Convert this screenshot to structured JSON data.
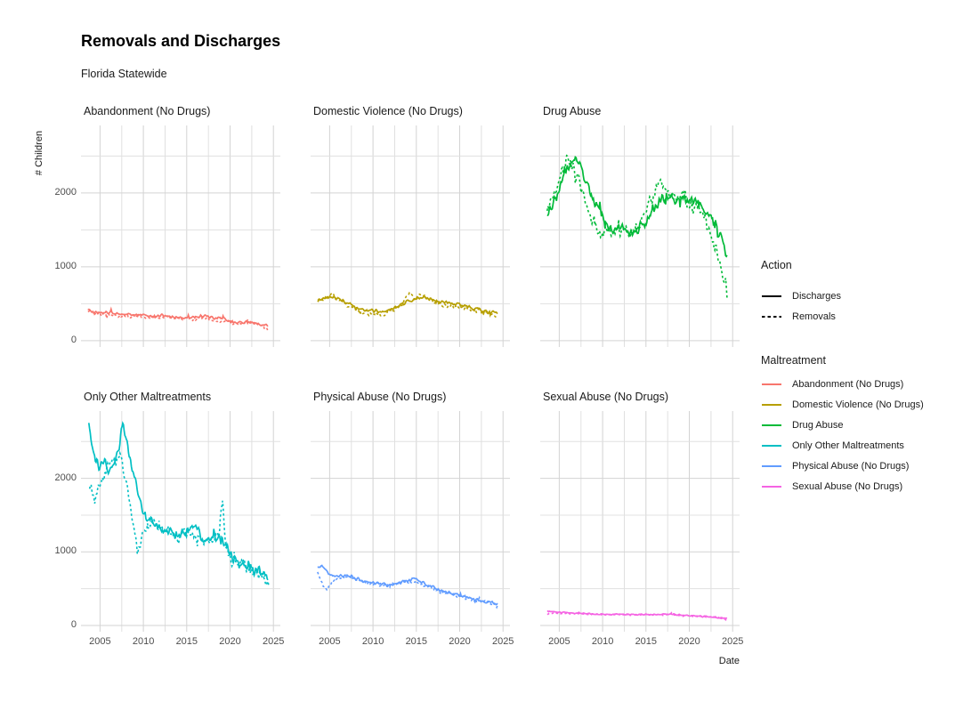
{
  "title": "Removals and Discharges",
  "subtitle": "Florida Statewide",
  "axes": {
    "x_label": "Date",
    "y_label": "# Children",
    "x_ticks": [
      2005,
      2010,
      2015,
      2020,
      2025
    ],
    "y_ticks": [
      0,
      1000,
      2000
    ],
    "x_domain": [
      2002.8,
      2025.8
    ],
    "y_domain": [
      -85,
      2915
    ],
    "x_grid_step": 2.5,
    "y_grid_step": 500,
    "grid_major_color": "#d3d3d3",
    "grid_minor_color": "#e0e0e0",
    "tick_text_color": "#4d4d4d"
  },
  "legend": {
    "position": "right",
    "action_title": "Action",
    "action_items": [
      {
        "label": "Discharges",
        "style": "solid"
      },
      {
        "label": "Removals",
        "style": "dashed"
      }
    ],
    "maltreatment_title": "Maltreatment",
    "maltreatment_items": [
      {
        "label": "Abandonment (No Drugs)",
        "color": "#F8766D"
      },
      {
        "label": "Domestic Violence (No Drugs)",
        "color": "#B79F00"
      },
      {
        "label": "Drug Abuse",
        "color": "#00BA38"
      },
      {
        "label": "Only Other Maltreatments",
        "color": "#00BFC4"
      },
      {
        "label": "Physical Abuse (No Drugs)",
        "color": "#619CFF"
      },
      {
        "label": "Sexual Abuse (No Drugs)",
        "color": "#F564E3"
      }
    ]
  },
  "chart_data": {
    "type": "line",
    "title": "Removals and Discharges",
    "subtitle": "Florida Statewide",
    "xlabel": "Date",
    "ylabel": "# Children",
    "xlim": [
      2002.8,
      2025.8
    ],
    "ylim": [
      -85,
      2915
    ],
    "grid": true,
    "legend_position": "right",
    "facets": [
      {
        "title": "Abandonment (No Drugs)",
        "color": "#F8766D",
        "noise": 13,
        "series": [
          {
            "name": "Discharges",
            "style": "solid",
            "x": [
              2003.6,
              2004.2,
              2005,
              2006,
              2007,
              2008,
              2009,
              2010,
              2011,
              2012,
              2013,
              2014,
              2015,
              2016,
              2017,
              2018,
              2019,
              2020,
              2021,
              2022,
              2023,
              2024,
              2024.4
            ],
            "y": [
              430,
              385,
              375,
              385,
              368,
              355,
              345,
              348,
              330,
              338,
              330,
              318,
              308,
              330,
              342,
              300,
              312,
              252,
              245,
              252,
              235,
              218,
              205
            ]
          },
          {
            "name": "Removals",
            "style": "dashed",
            "x": [
              2003.6,
              2004.5,
              2005.5,
              2006.5,
              2007.5,
              2008.5,
              2009.5,
              2010.5,
              2011.5,
              2012.5,
              2013.5,
              2014.5,
              2015.5,
              2016.5,
              2017.5,
              2018.5,
              2019.5,
              2020.5,
              2021.5,
              2022,
              2022.7,
              2023.5,
              2024.4
            ],
            "y": [
              395,
              360,
              350,
              345,
              335,
              330,
              332,
              318,
              312,
              322,
              310,
              292,
              300,
              305,
              295,
              262,
              275,
              230,
              228,
              265,
              240,
              215,
              148
            ]
          }
        ]
      },
      {
        "title": "Domestic Violence (No Drugs)",
        "color": "#B79F00",
        "noise": 16,
        "series": [
          {
            "name": "Discharges",
            "style": "solid",
            "x": [
              2003.6,
              2004.3,
              2005,
              2005.7,
              2006.5,
              2007.3,
              2008,
              2009,
              2010,
              2011,
              2012,
              2013,
              2014,
              2015,
              2016,
              2017,
              2018,
              2019,
              2020,
              2021,
              2022,
              2023,
              2024,
              2024.4
            ],
            "y": [
              560,
              575,
              595,
              580,
              555,
              500,
              445,
              395,
              412,
              385,
              420,
              460,
              535,
              560,
              592,
              545,
              522,
              500,
              482,
              462,
              425,
              402,
              382,
              370
            ]
          },
          {
            "name": "Removals",
            "style": "dashed",
            "x": [
              2003.6,
              2004.4,
              2005.3,
              2006,
              2007,
              2008,
              2009,
              2010,
              2011,
              2012,
              2013,
              2014.2,
              2014.8,
              2015.5,
              2016.3,
              2017,
              2018,
              2019,
              2020,
              2021,
              2022,
              2023,
              2023.8,
              2024.4
            ],
            "y": [
              520,
              555,
              640,
              560,
              480,
              420,
              365,
              380,
              340,
              400,
              452,
              648,
              560,
              622,
              580,
              520,
              495,
              470,
              455,
              438,
              405,
              385,
              360,
              285
            ]
          }
        ]
      },
      {
        "title": "Drug Abuse",
        "color": "#00BA38",
        "noise": 52,
        "series": [
          {
            "name": "Discharges",
            "style": "solid",
            "x": [
              2003.6,
              2004.3,
              2005,
              2005.8,
              2006.5,
              2007.2,
              2008,
              2009,
              2010,
              2011,
              2012,
              2013,
              2014,
              2015,
              2016,
              2017.3,
              2018,
              2019,
              2020,
              2021,
              2021.8,
              2022.6,
              2023.3,
              2023.9,
              2024.4
            ],
            "y": [
              1750,
              1850,
              2100,
              2300,
              2480,
              2420,
              2150,
              1880,
              1660,
              1500,
              1560,
              1480,
              1530,
              1620,
              1820,
              1990,
              1900,
              1950,
              1900,
              1860,
              1780,
              1620,
              1480,
              1330,
              1150
            ]
          },
          {
            "name": "Removals",
            "style": "dashed",
            "x": [
              2003.6,
              2004.4,
              2005.2,
              2005.9,
              2006.6,
              2007.4,
              2008.2,
              2009,
              2010,
              2011,
              2012,
              2013,
              2014,
              2015,
              2015.8,
              2016.8,
              2017.4,
              2018,
              2019,
              2020,
              2021,
              2022,
              2022.8,
              2023.5,
              2024,
              2024.4
            ],
            "y": [
              1820,
              2000,
              2280,
              2430,
              2370,
              2120,
              1850,
              1540,
              1430,
              1470,
              1520,
              1440,
              1500,
              1730,
              2000,
              2140,
              2030,
              1940,
              2010,
              1840,
              1800,
              1580,
              1340,
              1050,
              800,
              630
            ]
          }
        ]
      },
      {
        "title": "Only Other Maltreatments",
        "color": "#00BFC4",
        "noise": 45,
        "series": [
          {
            "name": "Discharges",
            "style": "solid",
            "x": [
              2003.7,
              2004.3,
              2004.9,
              2005.5,
              2006.1,
              2006.7,
              2007.2,
              2007.6,
              2008.1,
              2008.7,
              2009.3,
              2009.9,
              2010.4,
              2011,
              2012,
              2013,
              2014,
              2015,
              2016,
              2017,
              2018,
              2019,
              2019.8,
              2020.4,
              2021,
              2022,
              2023,
              2024,
              2024.4
            ],
            "y": [
              2750,
              2280,
              2150,
              2260,
              2080,
              2230,
              2450,
              2760,
              2500,
              2150,
              1850,
              1600,
              1450,
              1380,
              1320,
              1280,
              1230,
              1290,
              1320,
              1150,
              1220,
              1180,
              1050,
              900,
              870,
              820,
              740,
              690,
              665
            ]
          },
          {
            "name": "Removals",
            "style": "dashed",
            "x": [
              2003.8,
              2004.4,
              2005,
              2005.6,
              2006.2,
              2006.8,
              2007.3,
              2007.8,
              2008.4,
              2008.9,
              2009.3,
              2009.8,
              2010.4,
              2011,
              2012,
              2013,
              2014,
              2015,
              2016,
              2017,
              2018,
              2018.8,
              2019.1,
              2019.5,
              2020.2,
              2021,
              2022,
              2023,
              2023.8,
              2024.5
            ],
            "y": [
              1900,
              1680,
              1950,
              2100,
              2280,
              2180,
              2320,
              2100,
              1700,
              1280,
              1000,
              1220,
              1300,
              1350,
              1300,
              1250,
              1200,
              1260,
              1280,
              1120,
              1200,
              1250,
              1700,
              1150,
              880,
              850,
              800,
              720,
              640,
              545
            ]
          }
        ]
      },
      {
        "title": "Physical Abuse (No Drugs)",
        "color": "#619CFF",
        "noise": 14,
        "series": [
          {
            "name": "Discharges",
            "style": "solid",
            "x": [
              2003.6,
              2004.1,
              2004.6,
              2005.2,
              2006,
              2007,
              2008,
              2009,
              2010,
              2011,
              2012,
              2013,
              2014,
              2014.8,
              2015.6,
              2016.4,
              2017.2,
              2018,
              2019,
              2020,
              2021,
              2022,
              2023,
              2024,
              2024.4
            ],
            "y": [
              790,
              820,
              740,
              680,
              665,
              680,
              645,
              600,
              575,
              560,
              555,
              580,
              610,
              635,
              590,
              545,
              510,
              465,
              440,
              410,
              380,
              345,
              325,
              300,
              290
            ]
          },
          {
            "name": "Removals",
            "style": "dashed",
            "x": [
              2003.6,
              2004.2,
              2004.7,
              2005.3,
              2006,
              2007,
              2008,
              2009,
              2010,
              2011,
              2012,
              2013,
              2014,
              2015,
              2016,
              2017,
              2018,
              2019,
              2020,
              2021,
              2022,
              2023,
              2024,
              2024.4
            ],
            "y": [
              700,
              560,
              470,
              620,
              650,
              660,
              630,
              585,
              560,
              545,
              540,
              570,
              600,
              580,
              530,
              500,
              455,
              430,
              400,
              370,
              335,
              315,
              280,
              245
            ]
          }
        ]
      },
      {
        "title": "Sexual Abuse (No Drugs)",
        "color": "#F564E3",
        "noise": 6,
        "series": [
          {
            "name": "Discharges",
            "style": "solid",
            "x": [
              2003.6,
              2004.5,
              2005.5,
              2007,
              2009,
              2011,
              2013,
              2015,
              2017,
              2018,
              2019,
              2020,
              2021,
              2022,
              2023,
              2024,
              2024.4
            ],
            "y": [
              190,
              185,
              175,
              165,
              158,
              152,
              150,
              148,
              150,
              155,
              140,
              132,
              125,
              120,
              112,
              100,
              90
            ]
          },
          {
            "name": "Removals",
            "style": "dashed",
            "x": [
              2003.6,
              2004.5,
              2005.5,
              2007,
              2009,
              2011,
              2013,
              2015,
              2017,
              2018,
              2019,
              2020,
              2021,
              2022,
              2023,
              2024,
              2024.4
            ],
            "y": [
              160,
              170,
              168,
              158,
              152,
              148,
              146,
              144,
              146,
              150,
              136,
              128,
              120,
              115,
              108,
              92,
              62
            ]
          }
        ]
      }
    ]
  }
}
